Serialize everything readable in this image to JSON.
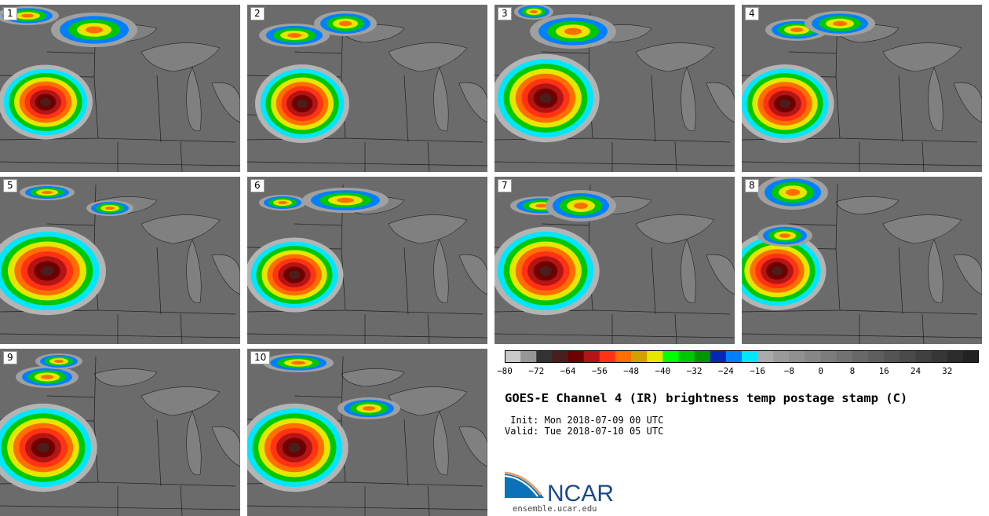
{
  "panels": [
    {
      "label": "1",
      "storm": [
        58,
        130,
        48,
        38
      ],
      "north": [
        [
          35,
          20,
          40,
          12
        ],
        [
          120,
          38,
          55,
          22
        ]
      ]
    },
    {
      "label": "2",
      "storm": [
        385,
        132,
        48,
        40
      ],
      "north": [
        [
          375,
          45,
          45,
          15
        ],
        [
          440,
          30,
          40,
          16
        ]
      ]
    },
    {
      "label": "3",
      "storm": [
        695,
        125,
        55,
        45
      ],
      "north": [
        [
          680,
          15,
          25,
          10
        ],
        [
          730,
          40,
          55,
          22
        ]
      ]
    },
    {
      "label": "4",
      "storm": [
        1000,
        132,
        50,
        40
      ],
      "north": [
        [
          1015,
          38,
          40,
          14
        ],
        [
          1070,
          30,
          45,
          16
        ]
      ]
    },
    {
      "label": "5",
      "storm": [
        60,
        345,
        60,
        45
      ],
      "north": [
        [
          60,
          245,
          35,
          10
        ],
        [
          140,
          265,
          30,
          10
        ]
      ]
    },
    {
      "label": "6",
      "storm": [
        375,
        350,
        50,
        38
      ],
      "north": [
        [
          360,
          258,
          30,
          10
        ],
        [
          440,
          255,
          55,
          16
        ]
      ]
    },
    {
      "label": "7",
      "storm": [
        695,
        345,
        55,
        45
      ],
      "north": [
        [
          690,
          262,
          40,
          12
        ],
        [
          740,
          262,
          45,
          20
        ]
      ]
    },
    {
      "label": "8",
      "storm": [
        990,
        345,
        50,
        40
      ],
      "north": [
        [
          1010,
          245,
          45,
          22
        ],
        [
          1000,
          300,
          35,
          14
        ]
      ]
    },
    {
      "label": "9",
      "storm": [
        55,
        570,
        55,
        45
      ],
      "north": [
        [
          60,
          480,
          40,
          14
        ],
        [
          75,
          460,
          30,
          10
        ]
      ]
    },
    {
      "label": "10",
      "storm": [
        375,
        570,
        55,
        45
      ],
      "north": [
        [
          380,
          462,
          45,
          12
        ],
        [
          470,
          520,
          40,
          14
        ]
      ]
    }
  ],
  "colorbar": {
    "colors": [
      "#c8c8c8",
      "#969696",
      "#323232",
      "#4b1e1e",
      "#6e0000",
      "#b41414",
      "#ff3214",
      "#ff6e00",
      "#d2a000",
      "#e6e600",
      "#00ff00",
      "#00c800",
      "#009600",
      "#0028b4",
      "#0080ff",
      "#00e6ff",
      "#aaaaaa",
      "#9a9a9a",
      "#909090",
      "#868686",
      "#7c7c7c",
      "#727272",
      "#686868",
      "#5e5e5e",
      "#545454",
      "#4a4a4a",
      "#404040",
      "#363636",
      "#2c2c2c",
      "#222222"
    ],
    "tick_labels": [
      "−80",
      "−72",
      "−64",
      "−56",
      "−48",
      "−40",
      "−32",
      "−24",
      "−16",
      "−8",
      "0",
      "8",
      "16",
      "24",
      "32"
    ]
  },
  "title": "GOES-E Channel 4 (IR) brightness temp postage stamp (C)",
  "init": " Init: Mon 2018-07-09 00 UTC",
  "valid": "Valid: Tue 2018-07-10 05 UTC",
  "logo_text": "NCAR",
  "url": "ensemble.ucar.edu"
}
